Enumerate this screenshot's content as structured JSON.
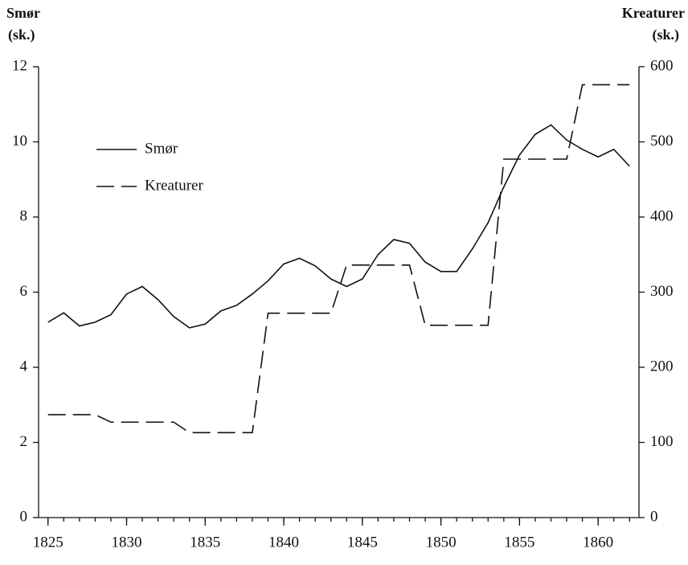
{
  "chart_data": {
    "type": "line",
    "y_label": [
      "Smør",
      "(sk.)"
    ],
    "y2_label": [
      "Kreaturer",
      "(sk.)"
    ],
    "x": [
      1825,
      1826,
      1827,
      1828,
      1829,
      1830,
      1831,
      1832,
      1833,
      1834,
      1835,
      1836,
      1837,
      1838,
      1839,
      1840,
      1841,
      1842,
      1843,
      1844,
      1845,
      1846,
      1847,
      1848,
      1849,
      1850,
      1851,
      1852,
      1853,
      1854,
      1855,
      1856,
      1857,
      1858,
      1859,
      1860,
      1861,
      1862
    ],
    "series": [
      {
        "name": "Smør",
        "color": "#111111",
        "dash": "solid",
        "values": [
          5.2,
          5.45,
          5.1,
          5.2,
          5.4,
          5.95,
          6.15,
          5.8,
          5.35,
          5.05,
          5.15,
          5.5,
          5.65,
          5.95,
          6.3,
          6.75,
          6.9,
          6.7,
          6.35,
          6.15,
          6.35,
          7.0,
          7.4,
          7.3,
          6.8,
          6.55,
          6.55,
          7.15,
          7.85,
          8.8,
          9.65,
          10.2,
          10.45,
          10.05,
          9.8,
          9.6,
          9.8,
          9.35
        ]
      },
      {
        "name": "Kreaturer",
        "color": "#111111",
        "dash": "dashed",
        "axis": "y2",
        "values": [
          137,
          137,
          137,
          137,
          127,
          127,
          127,
          127,
          127,
          113,
          113,
          113,
          113,
          113,
          272,
          272,
          272,
          272,
          272,
          336,
          336,
          336,
          336,
          336,
          256,
          256,
          256,
          256,
          256,
          477,
          477,
          477,
          477,
          477,
          576,
          576,
          576,
          576
        ]
      }
    ],
    "xlim": [
      1824.4,
      1862.6
    ],
    "xticks": [
      1825,
      1830,
      1835,
      1840,
      1845,
      1850,
      1855,
      1860
    ],
    "x_minor_step": 1,
    "ylim": [
      0,
      12
    ],
    "yticks": [
      0,
      2,
      4,
      6,
      8,
      10,
      12
    ],
    "y2lim": [
      0,
      600
    ],
    "y2ticks": [
      0,
      100,
      200,
      300,
      400,
      500,
      600
    ],
    "grid": false,
    "legend": "upper left"
  }
}
